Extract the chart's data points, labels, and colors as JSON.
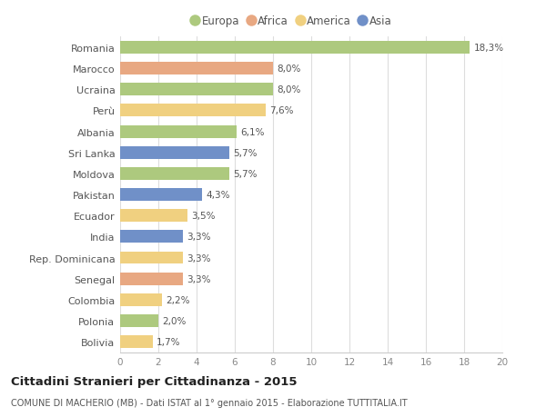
{
  "countries": [
    "Romania",
    "Marocco",
    "Ucraina",
    "Perù",
    "Albania",
    "Sri Lanka",
    "Moldova",
    "Pakistan",
    "Ecuador",
    "India",
    "Rep. Dominicana",
    "Senegal",
    "Colombia",
    "Polonia",
    "Bolivia"
  ],
  "values": [
    18.3,
    8.0,
    8.0,
    7.6,
    6.1,
    5.7,
    5.7,
    4.3,
    3.5,
    3.3,
    3.3,
    3.3,
    2.2,
    2.0,
    1.7
  ],
  "labels": [
    "18,3%",
    "8,0%",
    "8,0%",
    "7,6%",
    "6,1%",
    "5,7%",
    "5,7%",
    "4,3%",
    "3,5%",
    "3,3%",
    "3,3%",
    "3,3%",
    "2,2%",
    "2,0%",
    "1,7%"
  ],
  "continents": [
    "Europa",
    "Africa",
    "Europa",
    "America",
    "Europa",
    "Asia",
    "Europa",
    "Asia",
    "America",
    "Asia",
    "America",
    "Africa",
    "America",
    "Europa",
    "America"
  ],
  "colors": {
    "Europa": "#adc97e",
    "Africa": "#e8a882",
    "America": "#f0d080",
    "Asia": "#7090c8"
  },
  "legend_order": [
    "Europa",
    "Africa",
    "America",
    "Asia"
  ],
  "xlim": [
    0,
    20
  ],
  "xticks": [
    0,
    2,
    4,
    6,
    8,
    10,
    12,
    14,
    16,
    18,
    20
  ],
  "title": "Cittadini Stranieri per Cittadinanza - 2015",
  "subtitle": "COMUNE DI MACHERIO (MB) - Dati ISTAT al 1° gennaio 2015 - Elaborazione TUTTITALIA.IT",
  "background_color": "#ffffff",
  "grid_color": "#dddddd",
  "bar_height": 0.6
}
